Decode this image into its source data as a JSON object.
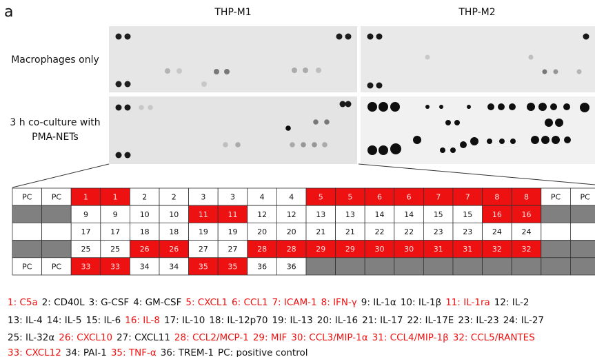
{
  "figure": {
    "panel_letter": "a",
    "column_headers": [
      "THP-M1",
      "THP-M2"
    ],
    "row_headers": [
      [
        "Macrophages only"
      ],
      [
        "3 h co-culture with",
        "PMA-NETs"
      ]
    ],
    "table": {
      "rows": [
        {
          "cells": [
            "PC",
            "PC",
            "1",
            "1",
            "2",
            "2",
            "3",
            "3",
            "4",
            "4",
            "5",
            "5",
            "6",
            "6",
            "7",
            "7",
            "8",
            "8",
            "PC",
            "PC"
          ],
          "empty_color": "#808080"
        },
        {
          "cells": [
            null,
            null,
            "9",
            "9",
            "10",
            "10",
            "11",
            "11",
            "12",
            "12",
            "13",
            "13",
            "14",
            "14",
            "15",
            "15",
            "16",
            "16",
            null,
            null
          ],
          "empty_color": "#808080"
        },
        {
          "cells": [
            null,
            null,
            "17",
            "17",
            "18",
            "18",
            "19",
            "19",
            "20",
            "20",
            "21",
            "21",
            "22",
            "22",
            "23",
            "23",
            "24",
            "24",
            null,
            null
          ],
          "empty_color": "#ffffff"
        },
        {
          "cells": [
            null,
            null,
            "25",
            "25",
            "26",
            "26",
            "27",
            "27",
            "28",
            "28",
            "29",
            "29",
            "30",
            "30",
            "31",
            "31",
            "32",
            "32",
            null,
            null
          ],
          "empty_color": "#808080"
        },
        {
          "cells": [
            "PC",
            "PC",
            "33",
            "33",
            "34",
            "34",
            "35",
            "35",
            "36",
            "36",
            null,
            null,
            null,
            null,
            null,
            null,
            null,
            null,
            null,
            null
          ],
          "empty_color": "#808080"
        }
      ],
      "highlight_color": "#ee1111"
    },
    "legend": [
      [
        {
          "text": "1: C5a",
          "red": true
        },
        {
          "text": "2: CD40L",
          "red": false
        },
        {
          "text": "3: G-CSF",
          "red": false
        },
        {
          "text": "4: GM-CSF",
          "red": false
        },
        {
          "text": "5: CXCL1",
          "red": true
        },
        {
          "text": "6: CCL1",
          "red": true
        },
        {
          "text": "7: ICAM-1",
          "red": true
        },
        {
          "text": "8: IFN-γ",
          "red": true
        },
        {
          "text": "9: IL-1α",
          "red": false
        },
        {
          "text": "10: IL-1β",
          "red": false
        },
        {
          "text": "11: IL-1ra",
          "red": true
        },
        {
          "text": "12: IL-2",
          "red": false
        }
      ],
      [
        {
          "text": "13: IL-4",
          "red": false
        },
        {
          "text": "14: IL-5",
          "red": false
        },
        {
          "text": "15: IL-6",
          "red": false
        },
        {
          "text": "16: IL-8",
          "red": true
        },
        {
          "text": "17: IL-10",
          "red": false
        },
        {
          "text": "18: IL-12p70",
          "red": false
        },
        {
          "text": "19: IL-13",
          "red": false
        },
        {
          "text": "20: IL-16",
          "red": false
        },
        {
          "text": "21: IL-17",
          "red": false
        },
        {
          "text": "22: IL-17E",
          "red": false
        },
        {
          "text": "23: IL-23",
          "red": false
        },
        {
          "text": "24: IL-27",
          "red": false
        }
      ],
      [
        {
          "text": "25: IL-32α",
          "red": false
        },
        {
          "text": "26: CXCL10",
          "red": true
        },
        {
          "text": "27: CXCL11",
          "red": false
        },
        {
          "text": "28: CCL2/MCP-1",
          "red": true
        },
        {
          "text": "29: MIF",
          "red": true
        },
        {
          "text": "30: CCL3/MIP-1α",
          "red": true
        },
        {
          "text": "31: CCL4/MIP-1β",
          "red": true
        },
        {
          "text": "32: CCL5/RANTES",
          "red": true
        }
      ],
      [
        {
          "text": "33: CXCL12",
          "red": true
        },
        {
          "text": "34: PAI-1",
          "red": false
        },
        {
          "text": "35: TNF-α",
          "red": true
        },
        {
          "text": "36: TREM-1",
          "red": false
        },
        {
          "text": "PC: positive control",
          "red": false
        }
      ]
    ]
  }
}
